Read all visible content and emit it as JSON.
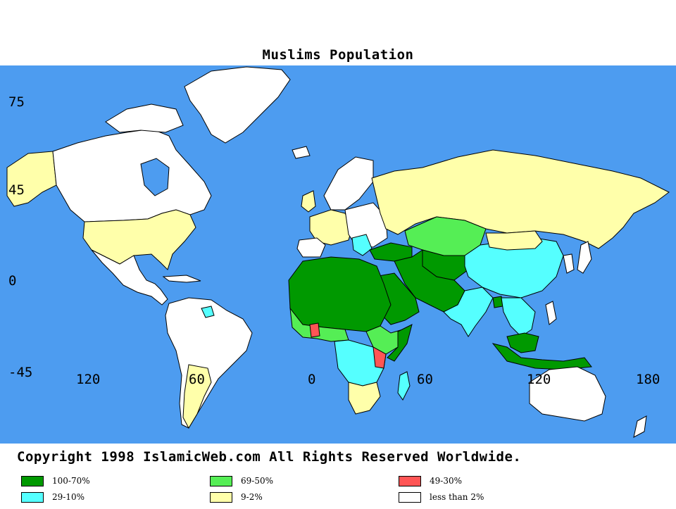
{
  "title": "Muslims Population",
  "axes": {
    "lat_labels": [
      "75",
      "45",
      "0",
      "-45"
    ],
    "lon_labels": [
      "120",
      "60",
      "0",
      "60",
      "120",
      "180"
    ]
  },
  "copyright": "Copyright 1998 IslamicWeb.com All Rights Reserved Worldwide.",
  "legend": [
    {
      "label": "100-70%",
      "color": "#009900"
    },
    {
      "label": "29-10%",
      "color": "#55ffff"
    },
    {
      "label": "69-50%",
      "color": "#55ee55"
    },
    {
      "label": "9-2%",
      "color": "#ffffaa"
    },
    {
      "label": "49-30%",
      "color": "#ff5555"
    },
    {
      "label": "less than 2%",
      "color": "#ffffff"
    }
  ],
  "colors": {
    "ocean": "#4d9cf0",
    "border": "#000000"
  }
}
